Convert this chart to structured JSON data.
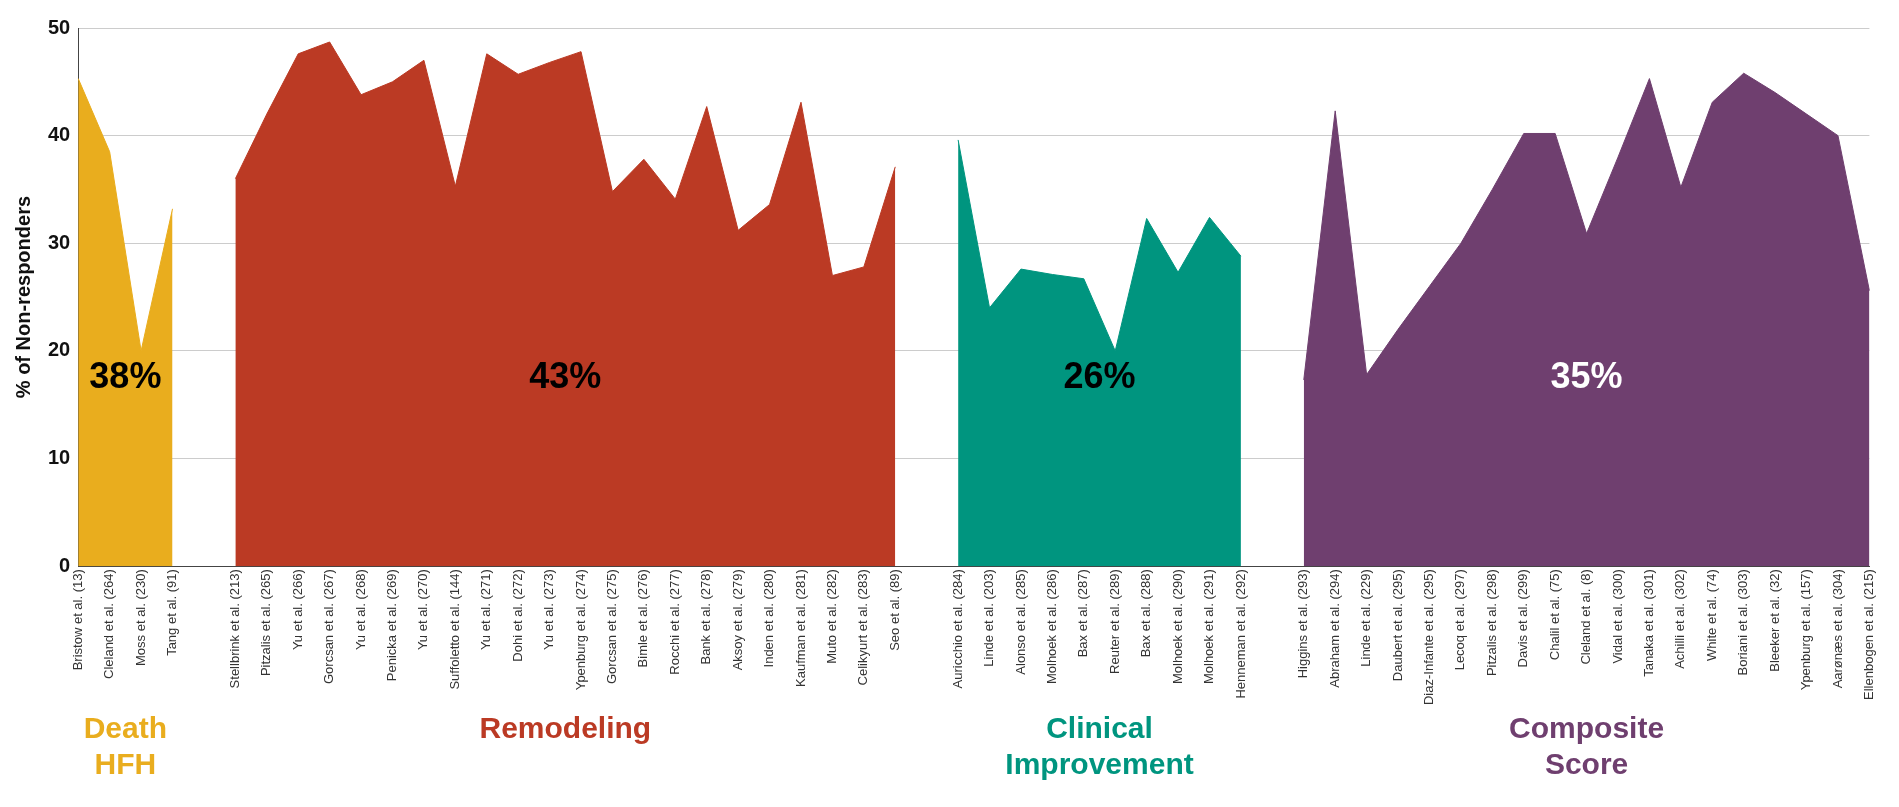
{
  "chart_data": {
    "type": "area",
    "ylabel": "% of Non-responders",
    "categories": [
      "Bristow et al. (13)",
      "Cleland et al. (264)",
      "Moss et al. (230)",
      "Tang et al. (91)",
      null,
      "Stellbrink et al. (213)",
      "Pitzalis et al. (265)",
      "Yu et al. (266)",
      "Gorcsan et al. (267)",
      "Yu et al. (268)",
      "Penicka et al. (269)",
      "Yu et al. (270)",
      "Suffoletto et al. (144)",
      "Yu et al. (271)",
      "Dohi et al. (272)",
      "Yu et al. (273)",
      "Ypenburg et al. (274)",
      "Gorcsan et al. (275)",
      "Bimle et al. (276)",
      "Rocchi et al. (277)",
      "Bank et al. (278)",
      "Aksoy et al. (279)",
      "Inden et al. (280)",
      "Kaufman et al. (281)",
      "Muto et al. (282)",
      "Celikyurt et al. (283)",
      "Seo et al. (89)",
      null,
      "Auricchio et al. (284)",
      "Linde et al. (203)",
      "Alonso et al. (285)",
      "Molhoek et al. (286)",
      "Bax et al. (287)",
      "Reuter et al. (289)",
      "Bax et al. (288)",
      "Molhoek et al. (290)",
      "Molhoek et al. (291)",
      "Henneman et al. (292)",
      null,
      "Higgins et al. (293)",
      "Abraham et al. (294)",
      "Linde et al. (229)",
      "Daubert et al. (295)",
      "Diaz-Infante et al. (295)",
      "Lecoq et al. (297)",
      "Pitzalis et al. (298)",
      "Davis et al. (299)",
      "Chalil et al. (75)",
      "Cleland et al. (8)",
      "Vidal et al. (300)",
      "Tanaka et al. (301)",
      "Achilli et al. (302)",
      "White et al. (74)",
      "Boriani et al. (303)",
      "Bleeker et al. (32)",
      "Ypenburg et al. (157)",
      "Aarønæs et al. (304)",
      "Ellenbogen et al. (215)"
    ],
    "series": [
      {
        "name": "Death HFH",
        "color": "#e9ad1e",
        "values": [
          45.3,
          38.5,
          20,
          33.2,
          null,
          null,
          null,
          null,
          null,
          null,
          null,
          null,
          null,
          null,
          null,
          null,
          null,
          null,
          null,
          null,
          null,
          null,
          null,
          null,
          null,
          null,
          null,
          null,
          null,
          null,
          null,
          null,
          null,
          null,
          null,
          null,
          null,
          null,
          null,
          null,
          null,
          null,
          null,
          null,
          null,
          null,
          null,
          null,
          null,
          null,
          null,
          null,
          null,
          null,
          null,
          null,
          null,
          null
        ]
      },
      {
        "name": "Remodeling",
        "color": "#bb3a24",
        "values": [
          null,
          null,
          null,
          null,
          null,
          36,
          42,
          47.6,
          48.7,
          43.8,
          45,
          47,
          35.3,
          47.6,
          45.7,
          46.8,
          47.8,
          34.8,
          37.8,
          34.1,
          42.7,
          31.2,
          33.6,
          43.1,
          27,
          27.8,
          37.1,
          null,
          null,
          null,
          null,
          null,
          null,
          null,
          null,
          null,
          null,
          null,
          null,
          null,
          null,
          null,
          null,
          null,
          null,
          null,
          null,
          null,
          null,
          null,
          null,
          null,
          null,
          null,
          null,
          null,
          null,
          null
        ]
      },
      {
        "name": "Clinical Improvement",
        "color": "#00957f",
        "values": [
          null,
          null,
          null,
          null,
          null,
          null,
          null,
          null,
          null,
          null,
          null,
          null,
          null,
          null,
          null,
          null,
          null,
          null,
          null,
          null,
          null,
          null,
          null,
          null,
          null,
          null,
          null,
          null,
          39.6,
          24,
          27.6,
          27.1,
          26.7,
          20,
          32.3,
          27.3,
          32.4,
          28.8,
          null,
          null,
          null,
          null,
          null,
          null,
          null,
          null,
          null,
          null,
          null,
          null,
          null,
          null,
          null,
          null,
          null,
          null,
          null,
          null
        ]
      },
      {
        "name": "Composite Score",
        "color": "#6f3f6f",
        "values": [
          null,
          null,
          null,
          null,
          null,
          null,
          null,
          null,
          null,
          null,
          null,
          null,
          null,
          null,
          null,
          null,
          null,
          null,
          null,
          null,
          null,
          null,
          null,
          null,
          null,
          null,
          null,
          null,
          null,
          null,
          null,
          null,
          null,
          null,
          null,
          null,
          null,
          null,
          null,
          17.3,
          42.3,
          17.8,
          22,
          26,
          30,
          35,
          40.2,
          40.2,
          30.9,
          38,
          45.3,
          35.2,
          43.1,
          45.8,
          44,
          42,
          40,
          25.6
        ]
      }
    ],
    "annotations": [
      "38%",
      "43%",
      "26%",
      "35%"
    ],
    "ylim": [
      0,
      50
    ],
    "yticks": [
      0,
      10,
      20,
      30,
      40,
      50
    ],
    "grid": "y",
    "legend": false
  }
}
